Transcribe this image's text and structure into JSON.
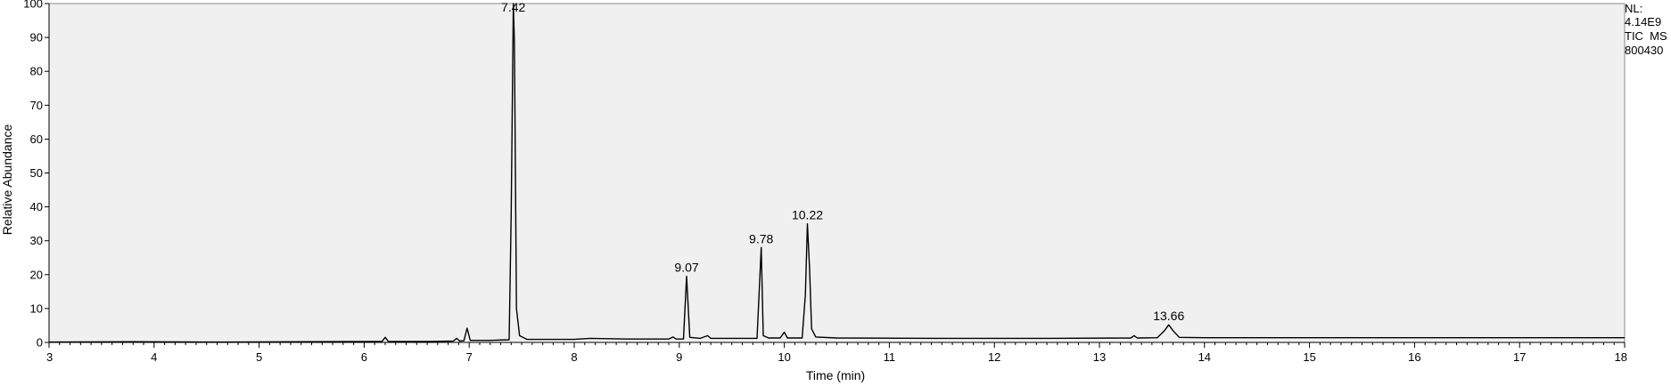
{
  "chart_data": {
    "type": "line",
    "xlabel": "Time (min)",
    "ylabel": "Relative Abundance",
    "xlim": [
      3,
      18
    ],
    "ylim": [
      0,
      100
    ],
    "x_ticks": [
      3,
      4,
      5,
      6,
      7,
      8,
      9,
      10,
      11,
      12,
      13,
      14,
      15,
      16,
      17,
      18
    ],
    "y_ticks": [
      0,
      10,
      20,
      30,
      40,
      50,
      60,
      70,
      80,
      90,
      100
    ],
    "grid": false,
    "colors": {
      "background": "#f0f0f0",
      "trace": "#000000"
    },
    "info": [
      "NL:",
      "4.14E9",
      "TIC  MS",
      "800430"
    ],
    "peak_labels": [
      {
        "label": "7.42",
        "x": 7.42,
        "y": 100
      },
      {
        "label": "9.07",
        "x": 9.07,
        "y": 19.5
      },
      {
        "label": "9.78",
        "x": 9.78,
        "y": 28
      },
      {
        "label": "10.22",
        "x": 10.22,
        "y": 35
      },
      {
        "label": "13.66",
        "x": 13.66,
        "y": 5.2
      }
    ],
    "series": [
      {
        "values": [
          [
            3.0,
            0.1
          ],
          [
            3.8,
            0.2
          ],
          [
            4.5,
            0.1
          ],
          [
            5.5,
            0.2
          ],
          [
            6.1,
            0.3
          ],
          [
            6.17,
            0.3
          ],
          [
            6.2,
            1.5
          ],
          [
            6.23,
            0.3
          ],
          [
            6.6,
            0.3
          ],
          [
            6.85,
            0.4
          ],
          [
            6.88,
            1.2
          ],
          [
            6.91,
            0.4
          ],
          [
            6.95,
            0.5
          ],
          [
            6.98,
            4.2
          ],
          [
            7.01,
            0.6
          ],
          [
            7.2,
            0.6
          ],
          [
            7.38,
            0.8
          ],
          [
            7.4,
            38
          ],
          [
            7.42,
            100
          ],
          [
            7.43,
            89
          ],
          [
            7.45,
            10
          ],
          [
            7.48,
            2
          ],
          [
            7.55,
            0.9
          ],
          [
            8.0,
            0.9
          ],
          [
            8.15,
            1.2
          ],
          [
            8.5,
            1.0
          ],
          [
            8.9,
            1.0
          ],
          [
            8.94,
            1.6
          ],
          [
            8.97,
            1.0
          ],
          [
            9.04,
            1.0
          ],
          [
            9.07,
            19.5
          ],
          [
            9.1,
            1.5
          ],
          [
            9.2,
            1.2
          ],
          [
            9.27,
            2.0
          ],
          [
            9.3,
            1.2
          ],
          [
            9.45,
            1.2
          ],
          [
            9.74,
            1.2
          ],
          [
            9.78,
            28
          ],
          [
            9.8,
            2
          ],
          [
            9.85,
            1.3
          ],
          [
            9.96,
            1.3
          ],
          [
            10.0,
            3.0
          ],
          [
            10.03,
            1.3
          ],
          [
            10.17,
            1.3
          ],
          [
            10.2,
            14
          ],
          [
            10.22,
            35
          ],
          [
            10.24,
            22
          ],
          [
            10.26,
            4
          ],
          [
            10.3,
            1.6
          ],
          [
            10.5,
            1.3
          ],
          [
            11.5,
            1.2
          ],
          [
            12.5,
            1.2
          ],
          [
            13.3,
            1.3
          ],
          [
            13.33,
            2.0
          ],
          [
            13.36,
            1.3
          ],
          [
            13.55,
            1.4
          ],
          [
            13.62,
            3.5
          ],
          [
            13.66,
            5.2
          ],
          [
            13.7,
            3.5
          ],
          [
            13.76,
            1.5
          ],
          [
            14.0,
            1.4
          ],
          [
            15.0,
            1.4
          ],
          [
            16.0,
            1.4
          ],
          [
            17.0,
            1.4
          ],
          [
            18.0,
            1.4
          ]
        ]
      }
    ]
  }
}
